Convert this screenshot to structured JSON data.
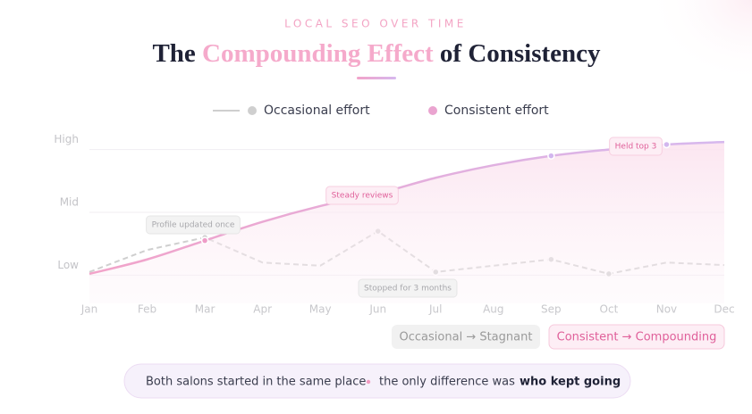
{
  "eyebrow": "LOCAL SEO OVER TIME",
  "title": {
    "before": "The ",
    "highlight": "Compounding Effect",
    "after": " of Consistency"
  },
  "chart_data": {
    "type": "line",
    "categories": [
      "Jan",
      "Feb",
      "Mar",
      "Apr",
      "May",
      "Jun",
      "Jul",
      "Aug",
      "Sep",
      "Oct",
      "Nov",
      "Dec"
    ],
    "series": [
      {
        "name": "Occasional effort",
        "color": "#cfcfcf",
        "values": [
          0.05,
          0.4,
          0.6,
          0.2,
          0.15,
          0.7,
          0.05,
          0.15,
          0.25,
          0.02,
          0.2,
          0.16
        ]
      },
      {
        "name": "Consistent effort",
        "color": "#eaa4d0",
        "values": [
          0.02,
          0.25,
          0.55,
          0.85,
          1.1,
          1.3,
          1.55,
          1.75,
          1.9,
          2.0,
          2.08,
          2.12
        ]
      }
    ],
    "ylim": [
      -0.45,
      2.25
    ],
    "yticks": [
      {
        "value": 0,
        "label": "Low"
      },
      {
        "value": 1,
        "label": "Mid"
      },
      {
        "value": 2,
        "label": "High"
      }
    ],
    "grid": true,
    "annotations": [
      "Profile updated once",
      "Steady reviews",
      "Stopped for 3 months",
      "Held top 3"
    ]
  },
  "badges": [
    "Occasional → Stagnant",
    "Consistent → Compounding"
  ],
  "footer": {
    "start": "Both salons started in the same place",
    "middle": "the only difference was",
    "end": "who kept going"
  }
}
